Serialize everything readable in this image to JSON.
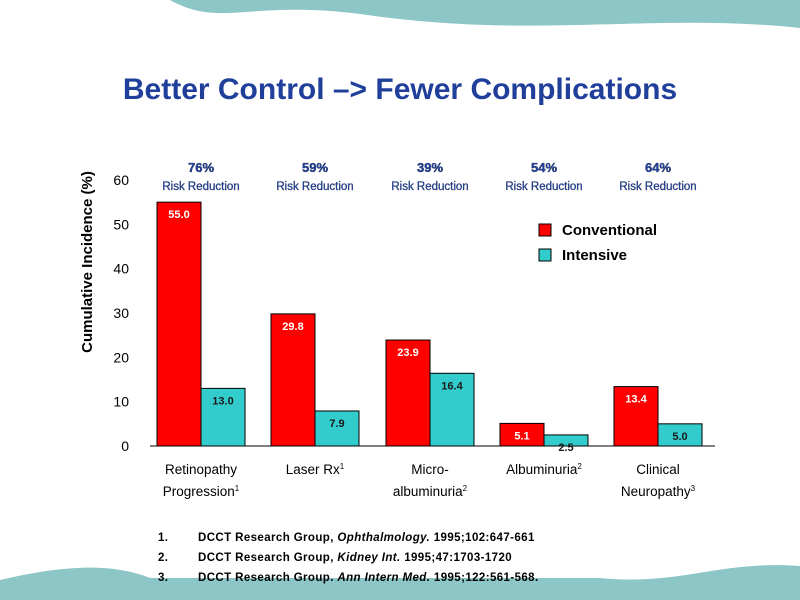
{
  "title": "Better Control –> Fewer Complications",
  "colors": {
    "title": "#1f3f9a",
    "conventional": "#ff0000",
    "intensive": "#33cccc",
    "reduction_text": "#1f3f9a",
    "wave_top": "#8cc6c6",
    "wave_bottom": "#8cc6c6"
  },
  "chart_data": {
    "type": "bar",
    "ylabel": "Cumulative Incidence (%)",
    "ylim": [
      0,
      60
    ],
    "yticks": [
      "0",
      "10",
      "20",
      "30",
      "40",
      "50",
      "60"
    ],
    "grid": false,
    "legend": "top-right",
    "categories": [
      {
        "line1": "Retinopathy",
        "line2": "Progression",
        "sup": "1"
      },
      {
        "line1": "Laser Rx",
        "line2": "",
        "sup": "1"
      },
      {
        "line1": "Micro-",
        "line2": "albuminuria",
        "sup": "2"
      },
      {
        "line1": "Albuminuria",
        "line2": "",
        "sup": "2"
      },
      {
        "line1": "Clinical",
        "line2": "Neuropathy",
        "sup": "3"
      }
    ],
    "series": [
      {
        "name": "Conventional",
        "values": [
          55.0,
          29.8,
          23.9,
          5.1,
          13.4
        ],
        "labels": [
          "55.0",
          "29.8",
          "23.9",
          "5.1",
          "13.4"
        ]
      },
      {
        "name": "Intensive",
        "values": [
          13.0,
          7.9,
          16.4,
          2.5,
          5.0
        ],
        "labels": [
          "13.0",
          "7.9",
          "16.4",
          "2.5",
          "5.0"
        ]
      }
    ],
    "annotations": [
      {
        "percent": "76%",
        "text": "Risk Reduction"
      },
      {
        "percent": "59%",
        "text": "Risk Reduction"
      },
      {
        "percent": "39%",
        "text": "Risk Reduction"
      },
      {
        "percent": "54%",
        "text": "Risk Reduction"
      },
      {
        "percent": "64%",
        "text": "Risk Reduction"
      }
    ]
  },
  "references": [
    {
      "num": "1.",
      "authors": "DCCT Research Group,",
      "journal": "Ophthalmology.",
      "rest": "1995;102:647-661"
    },
    {
      "num": "2.",
      "authors": "DCCT Research Group,",
      "journal": "Kidney Int.",
      "rest": "1995;47:1703-1720"
    },
    {
      "num": "3.",
      "authors": "DCCT Research Group.",
      "journal": "Ann Intern Med.",
      "rest": "1995;122:561-568."
    }
  ]
}
